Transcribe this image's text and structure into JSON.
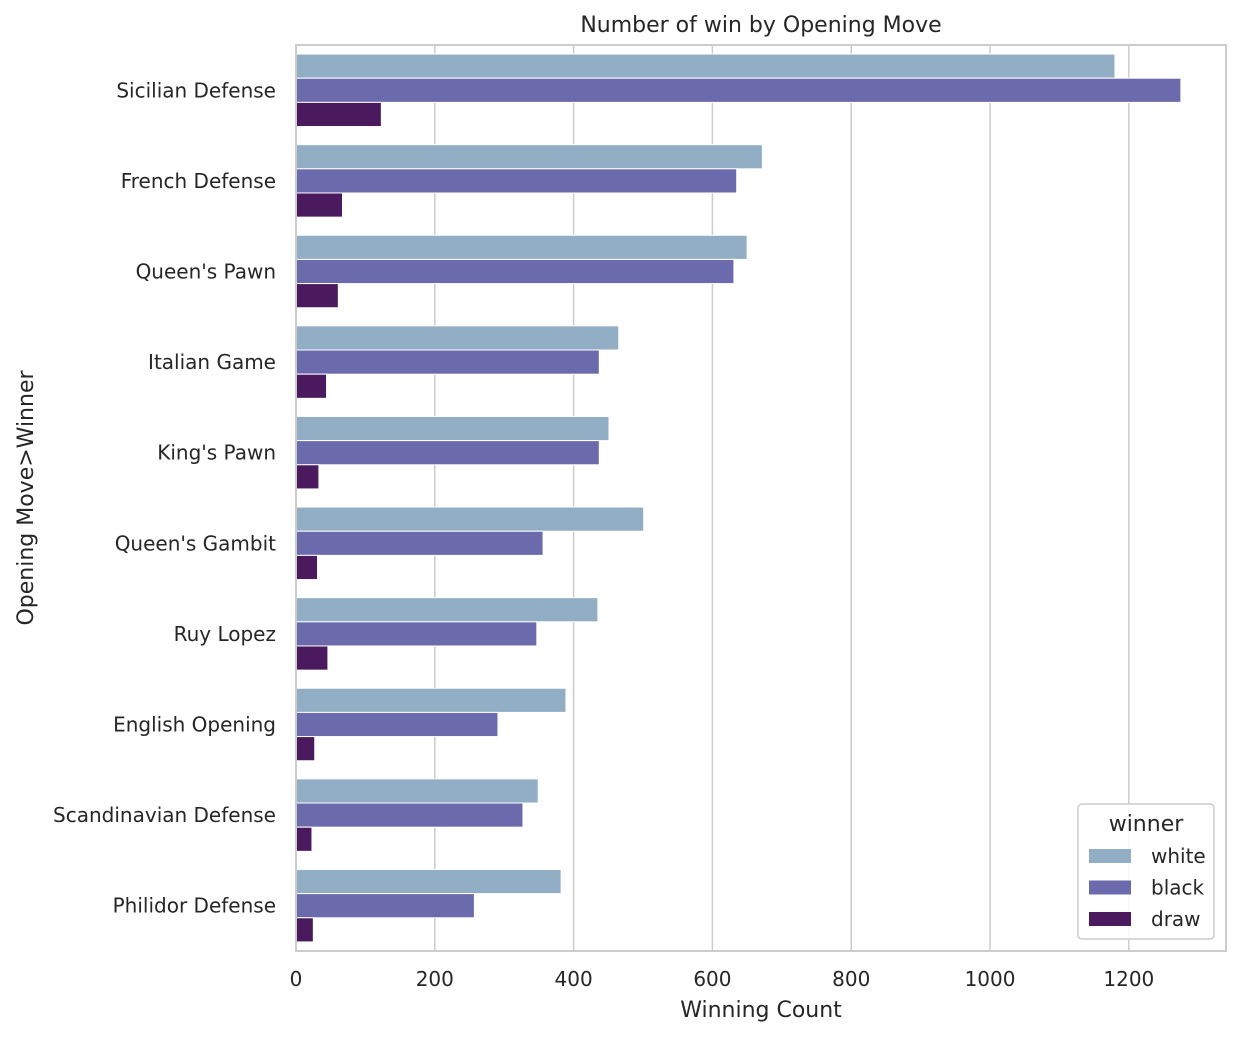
{
  "chart_data": {
    "type": "bar",
    "orientation": "horizontal",
    "title": "Number of win by Opening Move",
    "xlabel": "Winning Count",
    "ylabel": "Opening Move>Winner",
    "xlim": [
      0,
      1340
    ],
    "xticks": [
      0,
      200,
      400,
      600,
      800,
      1000,
      1200
    ],
    "grid": true,
    "categories": [
      "Sicilian Defense",
      "French Defense",
      "Queen's Pawn",
      "Italian Game",
      "King's Pawn",
      "Queen's Gambit",
      "Ruy Lopez",
      "English Opening",
      "Scandinavian Defense",
      "Philidor Defense"
    ],
    "series": [
      {
        "name": "white",
        "color": "#91aec4",
        "values": [
          1180,
          672,
          650,
          465,
          451,
          501,
          435,
          389,
          349,
          382
        ]
      },
      {
        "name": "black",
        "color": "#6a6aac",
        "values": [
          1275,
          635,
          631,
          437,
          437,
          356,
          347,
          291,
          327,
          257
        ]
      },
      {
        "name": "draw",
        "color": "#4b1a5e",
        "values": [
          123,
          67,
          61,
          44,
          33,
          31,
          46,
          27,
          23,
          25
        ]
      }
    ],
    "legend": {
      "title": "winner",
      "position": "lower-right"
    }
  }
}
